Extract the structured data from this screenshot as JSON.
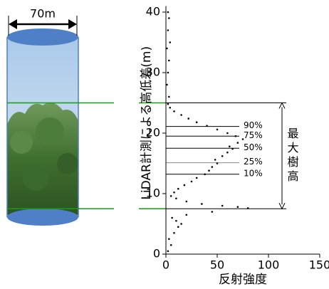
{
  "chart_data": {
    "type": "scatter",
    "ylabel": "LiDAR計測による高低差(m)",
    "xlabel": "反射強度",
    "xlim": [
      0,
      150
    ],
    "xticks": [
      0,
      50,
      100,
      150
    ],
    "ylim": [
      0,
      41
    ],
    "yticks": [
      0,
      10,
      20,
      30,
      40
    ],
    "color": "#000000",
    "x": [
      2,
      5,
      3,
      8,
      12,
      15,
      10,
      6,
      20,
      45,
      80,
      70,
      55,
      35,
      20,
      10,
      5,
      8,
      12,
      18,
      25,
      30,
      38,
      42,
      45,
      50,
      48,
      55,
      60,
      65,
      62,
      70,
      75,
      68,
      60,
      50,
      40,
      30,
      22,
      15,
      8,
      4,
      2,
      3,
      1,
      2,
      3,
      1,
      4,
      2,
      3,
      2
    ],
    "values": [
      0.5,
      1.5,
      2.5,
      3.5,
      4.5,
      5,
      5.5,
      6,
      6.5,
      7,
      7.6,
      7.8,
      8,
      8.3,
      8.7,
      9.2,
      9.6,
      10.2,
      10.8,
      11.4,
      12,
      12.6,
      13.2,
      13.8,
      14.4,
      15,
      15.6,
      16.2,
      16.8,
      17.4,
      17.8,
      18.4,
      19,
      19.5,
      20,
      20.6,
      21.2,
      21.8,
      22.4,
      23,
      23.6,
      24.2,
      24.8,
      26,
      28,
      30,
      32,
      34,
      35,
      37,
      39,
      40
    ],
    "percentiles": [
      {
        "label": "90%",
        "height": 21.1
      },
      {
        "label": "75%",
        "height": 19.5
      },
      {
        "label": "50%",
        "height": 17.5
      },
      {
        "label": "25%",
        "height": 15.1
      },
      {
        "label": "10%",
        "height": 13.2
      }
    ],
    "canopy_top": 25,
    "ground": 7.5,
    "height_label": "最大樹高",
    "width_label": "70m"
  }
}
